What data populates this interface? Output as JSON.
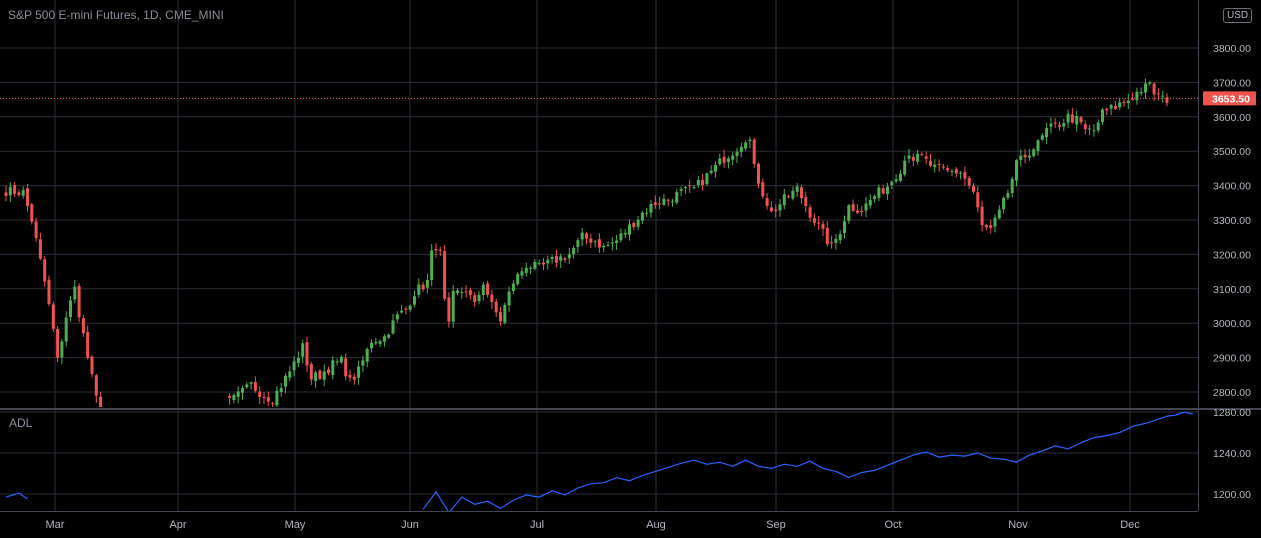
{
  "header": {
    "title": "S&P 500 E-mini Futures, 1D, CME_MINI",
    "currency_button": "USD"
  },
  "indicator": {
    "label": "ADL"
  },
  "colors": {
    "background": "#000000",
    "grid": "#2a2e39",
    "up": "#26a69a",
    "up_body": "#4caf50",
    "down": "#ef5350",
    "adl_line": "#2962ff",
    "last_price_bg": "#ef5350",
    "axis_text": "#b2b5be"
  },
  "chart_data": [
    {
      "type": "candlestick",
      "title": "S&P 500 E-mini Futures, 1D, CME_MINI",
      "price_axis": {
        "ticks": [
          "3800.00",
          "3700.00",
          "3600.00",
          "3500.00",
          "3400.00",
          "3300.00",
          "3200.00",
          "3100.00",
          "3000.00",
          "2900.00",
          "2800.00"
        ],
        "ylim": [
          2755,
          3930
        ]
      },
      "time_axis": {
        "ticks": [
          "Mar",
          "Apr",
          "May",
          "Jun",
          "Jul",
          "Aug",
          "Sep",
          "Oct",
          "Nov",
          "Dec"
        ]
      },
      "last_price": "3653.50",
      "grid": true,
      "series": [
        {
          "segments": [
            {
              "start": 0,
              "anchors": [
                [
                  0,
                  3385
                ],
                [
                  4,
                  3380
                ],
                [
                  6,
                  3300
                ],
                [
                  9,
                  3120
                ],
                [
                  11,
                  2980
                ],
                [
                  12,
                  2890
                ],
                [
                  14,
                  3020
                ],
                [
                  16,
                  3100
                ],
                [
                  17,
                  3030
                ],
                [
                  19,
                  2900
                ],
                [
                  20,
                  2840
                ],
                [
                  22,
                  2720
                ],
                [
                  23,
                  2700
                ]
              ]
            },
            {
              "start": 52,
              "anchors": [
                [
                  52,
                  2770
                ],
                [
                  57,
                  2820
                ],
                [
                  60,
                  2790
                ],
                [
                  62,
                  2780
                ],
                [
                  66,
                  2860
                ],
                [
                  69,
                  2930
                ],
                [
                  71,
                  2840
                ],
                [
                  73,
                  2850
                ],
                [
                  76,
                  2880
                ],
                [
                  78,
                  2890
                ],
                [
                  80,
                  2830
                ],
                [
                  82,
                  2860
                ],
                [
                  85,
                  2950
                ],
                [
                  88,
                  2960
                ],
                [
                  91,
                  3020
                ],
                [
                  93,
                  3040
                ],
                [
                  95,
                  3090
                ],
                [
                  98,
                  3120
                ],
                [
                  99,
                  3200
                ],
                [
                  100,
                  3225
                ],
                [
                  101,
                  3200
                ],
                [
                  102,
                  3060
                ],
                [
                  103,
                  2990
                ],
                [
                  104,
                  3080
                ],
                [
                  107,
                  3100
                ],
                [
                  109,
                  3050
                ],
                [
                  111,
                  3120
                ],
                [
                  113,
                  3050
                ],
                [
                  115,
                  3010
                ],
                [
                  116,
                  3050
                ],
                [
                  118,
                  3120
                ],
                [
                  121,
                  3170
                ],
                [
                  124,
                  3160
                ],
                [
                  127,
                  3180
                ],
                [
                  131,
                  3200
                ],
                [
                  134,
                  3250
                ],
                [
                  137,
                  3240
                ],
                [
                  139,
                  3220
                ],
                [
                  142,
                  3240
                ],
                [
                  145,
                  3280
                ],
                [
                  148,
                  3320
                ],
                [
                  151,
                  3350
                ],
                [
                  154,
                  3360
                ],
                [
                  157,
                  3380
                ],
                [
                  160,
                  3390
                ],
                [
                  164,
                  3440
                ],
                [
                  167,
                  3480
                ],
                [
                  170,
                  3510
                ],
                [
                  172,
                  3540
                ],
                [
                  173,
                  3530
                ],
                [
                  174,
                  3450
                ],
                [
                  176,
                  3380
                ],
                [
                  178,
                  3320
                ],
                [
                  181,
                  3360
                ],
                [
                  184,
                  3390
                ],
                [
                  187,
                  3320
                ],
                [
                  190,
                  3260
                ],
                [
                  192,
                  3220
                ],
                [
                  194,
                  3270
                ],
                [
                  196,
                  3340
                ],
                [
                  199,
                  3330
                ],
                [
                  202,
                  3370
                ],
                [
                  205,
                  3400
                ],
                [
                  208,
                  3450
                ],
                [
                  210,
                  3500
                ],
                [
                  211,
                  3480
                ],
                [
                  213,
                  3480
                ],
                [
                  216,
                  3450
                ],
                [
                  219,
                  3440
                ],
                [
                  222,
                  3440
                ],
                [
                  225,
                  3380
                ],
                [
                  227,
                  3280
                ],
                [
                  229,
                  3270
                ],
                [
                  231,
                  3320
                ],
                [
                  233,
                  3380
                ],
                [
                  235,
                  3460
                ],
                [
                  238,
                  3500
                ],
                [
                  240,
                  3520
                ],
                [
                  242,
                  3560
                ],
                [
                  245,
                  3580
                ],
                [
                  247,
                  3600
                ],
                [
                  249,
                  3590
                ],
                [
                  251,
                  3560
                ],
                [
                  253,
                  3560
                ],
                [
                  255,
                  3610
                ],
                [
                  258,
                  3630
                ],
                [
                  261,
                  3650
                ],
                [
                  264,
                  3680
                ],
                [
                  266,
                  3690
                ],
                [
                  267,
                  3670
                ],
                [
                  269,
                  3650
                ],
                [
                  270,
                  3640
                ]
              ]
            }
          ]
        }
      ]
    },
    {
      "type": "line",
      "name": "ADL",
      "value_axis": {
        "ticks": [
          "1280.00",
          "1240.00",
          "1200.00"
        ],
        "ylim": [
          1184,
          1282
        ]
      },
      "segments": [
        {
          "start": 0,
          "points": [
            [
              0,
              1197
            ],
            [
              3,
              1201
            ],
            [
              5,
              1195
            ]
          ]
        },
        {
          "start": 97,
          "points": [
            [
              97,
              1185
            ],
            [
              100,
              1202
            ],
            [
              103,
              1182
            ],
            [
              106,
              1197
            ],
            [
              109,
              1190
            ],
            [
              112,
              1193
            ],
            [
              115,
              1186
            ],
            [
              118,
              1194
            ],
            [
              121,
              1199
            ],
            [
              124,
              1197
            ],
            [
              127,
              1203
            ],
            [
              130,
              1199
            ],
            [
              133,
              1206
            ],
            [
              136,
              1210
            ],
            [
              139,
              1211
            ],
            [
              142,
              1216
            ],
            [
              145,
              1213
            ],
            [
              148,
              1218
            ],
            [
              151,
              1222
            ],
            [
              154,
              1226
            ],
            [
              157,
              1230
            ],
            [
              160,
              1233
            ],
            [
              163,
              1229
            ],
            [
              166,
              1231
            ],
            [
              169,
              1227
            ],
            [
              172,
              1233
            ],
            [
              175,
              1227
            ],
            [
              178,
              1225
            ],
            [
              181,
              1229
            ],
            [
              184,
              1227
            ],
            [
              187,
              1232
            ],
            [
              190,
              1225
            ],
            [
              193,
              1222
            ],
            [
              196,
              1216
            ],
            [
              199,
              1221
            ],
            [
              202,
              1223
            ],
            [
              205,
              1228
            ],
            [
              208,
              1233
            ],
            [
              211,
              1238
            ],
            [
              214,
              1241
            ],
            [
              217,
              1236
            ],
            [
              220,
              1238
            ],
            [
              223,
              1237
            ],
            [
              226,
              1240
            ],
            [
              229,
              1235
            ],
            [
              232,
              1234
            ],
            [
              235,
              1231
            ],
            [
              238,
              1238
            ],
            [
              241,
              1242
            ],
            [
              244,
              1247
            ],
            [
              247,
              1244
            ],
            [
              250,
              1250
            ],
            [
              253,
              1255
            ],
            [
              256,
              1257
            ],
            [
              259,
              1260
            ],
            [
              262,
              1266
            ],
            [
              265,
              1269
            ],
            [
              268,
              1273
            ],
            [
              270,
              1276
            ],
            [
              272,
              1277
            ],
            [
              274,
              1280
            ],
            [
              276,
              1278
            ]
          ]
        }
      ]
    }
  ]
}
